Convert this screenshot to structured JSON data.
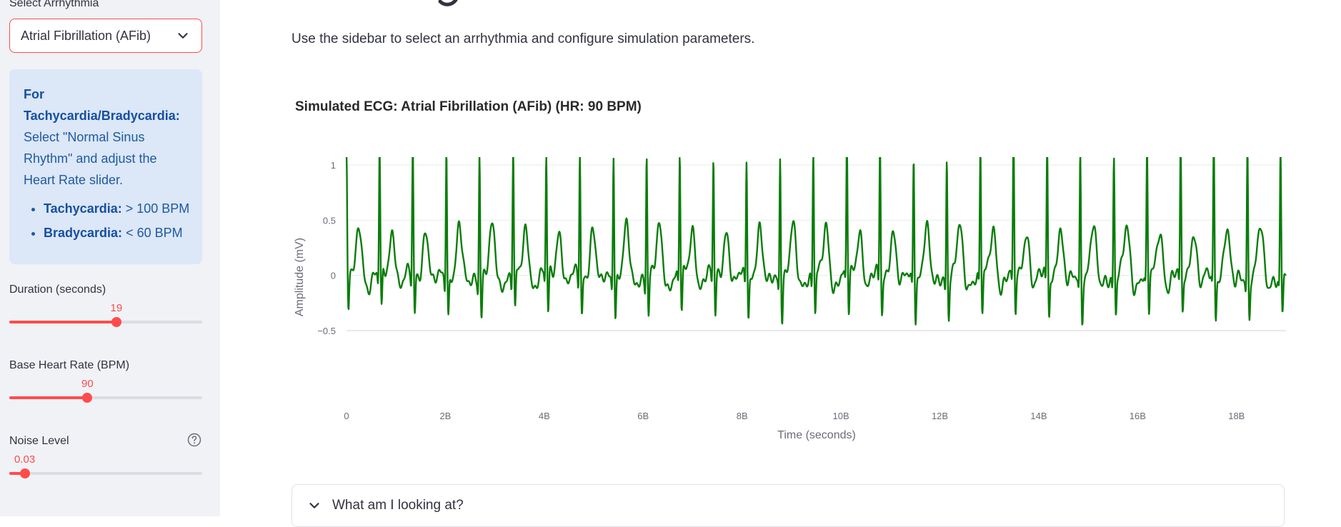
{
  "sidebar": {
    "select_label": "Select Arrhythmia",
    "selected_arrhythmia": "Atrial Fibrillation (AFib)",
    "info": {
      "heading": "For Tachycardia/Bradycardia:",
      "text": "Select \"Normal Sinus Rhythm\" and adjust the Heart Rate slider.",
      "bullets": [
        {
          "term": "Tachycardia:",
          "value": "> 100 BPM"
        },
        {
          "term": "Bradycardia:",
          "value": "< 60 BPM"
        }
      ]
    },
    "sliders": {
      "duration": {
        "label": "Duration (seconds)",
        "value": "19",
        "fraction": 0.555
      },
      "heart_rate": {
        "label": "Base Heart Rate (BPM)",
        "value": "90",
        "fraction": 0.405
      },
      "noise": {
        "label": "Noise Level",
        "value": "0.03",
        "fraction": 0.08
      }
    }
  },
  "main": {
    "description": "Use the sidebar to select an arrhythmia and configure simulation parameters."
  },
  "expander": {
    "label": "What am I looking at?"
  },
  "colors": {
    "accent": "#ff4b4b",
    "trace": "#0a7d0a",
    "info_bg": "#dce7f7"
  },
  "chart_data": {
    "type": "line",
    "title": "Simulated ECG: Atrial Fibrillation (AFib) (HR: 90 BPM)",
    "xlabel": "Time (seconds)",
    "ylabel": "Amplitude (mV)",
    "xlim": [
      0,
      19
    ],
    "ylim": [
      -0.5,
      1.0
    ],
    "x_ticks": [
      0,
      2,
      4,
      6,
      8,
      10,
      12,
      14,
      16,
      18
    ],
    "x_tick_labels": [
      "0",
      "2B",
      "4B",
      "6B",
      "8B",
      "10B",
      "12B",
      "14B",
      "16B",
      "18B"
    ],
    "y_ticks": [
      -0.5,
      0,
      0.5,
      1
    ],
    "y_tick_labels": [
      "−0.5",
      "0",
      "0.5",
      "1"
    ],
    "grid": true,
    "series": [
      {
        "beat_times": [
          0.0,
          0.67,
          1.34,
          2.02,
          2.69,
          3.37,
          4.04,
          4.72,
          5.4,
          6.07,
          6.74,
          7.42,
          8.09,
          8.77,
          9.44,
          10.12,
          10.79,
          11.47,
          12.14,
          12.82,
          13.49,
          14.17,
          14.84,
          15.52,
          16.19,
          16.87,
          17.54,
          18.22,
          18.89
        ],
        "beat_peaks": [
          1.1,
          1.17,
          1.18,
          1.21,
          1.15,
          1.17,
          1.06,
          1.13,
          1.17,
          1.13,
          1.11,
          1.02,
          1.1,
          1.12,
          1.15,
          1.22,
          1.2,
          1.12,
          1.08,
          1.17,
          1.18,
          1.21,
          1.12,
          1.1,
          1.09,
          1.18,
          1.2,
          1.18,
          1.15
        ]
      }
    ]
  }
}
